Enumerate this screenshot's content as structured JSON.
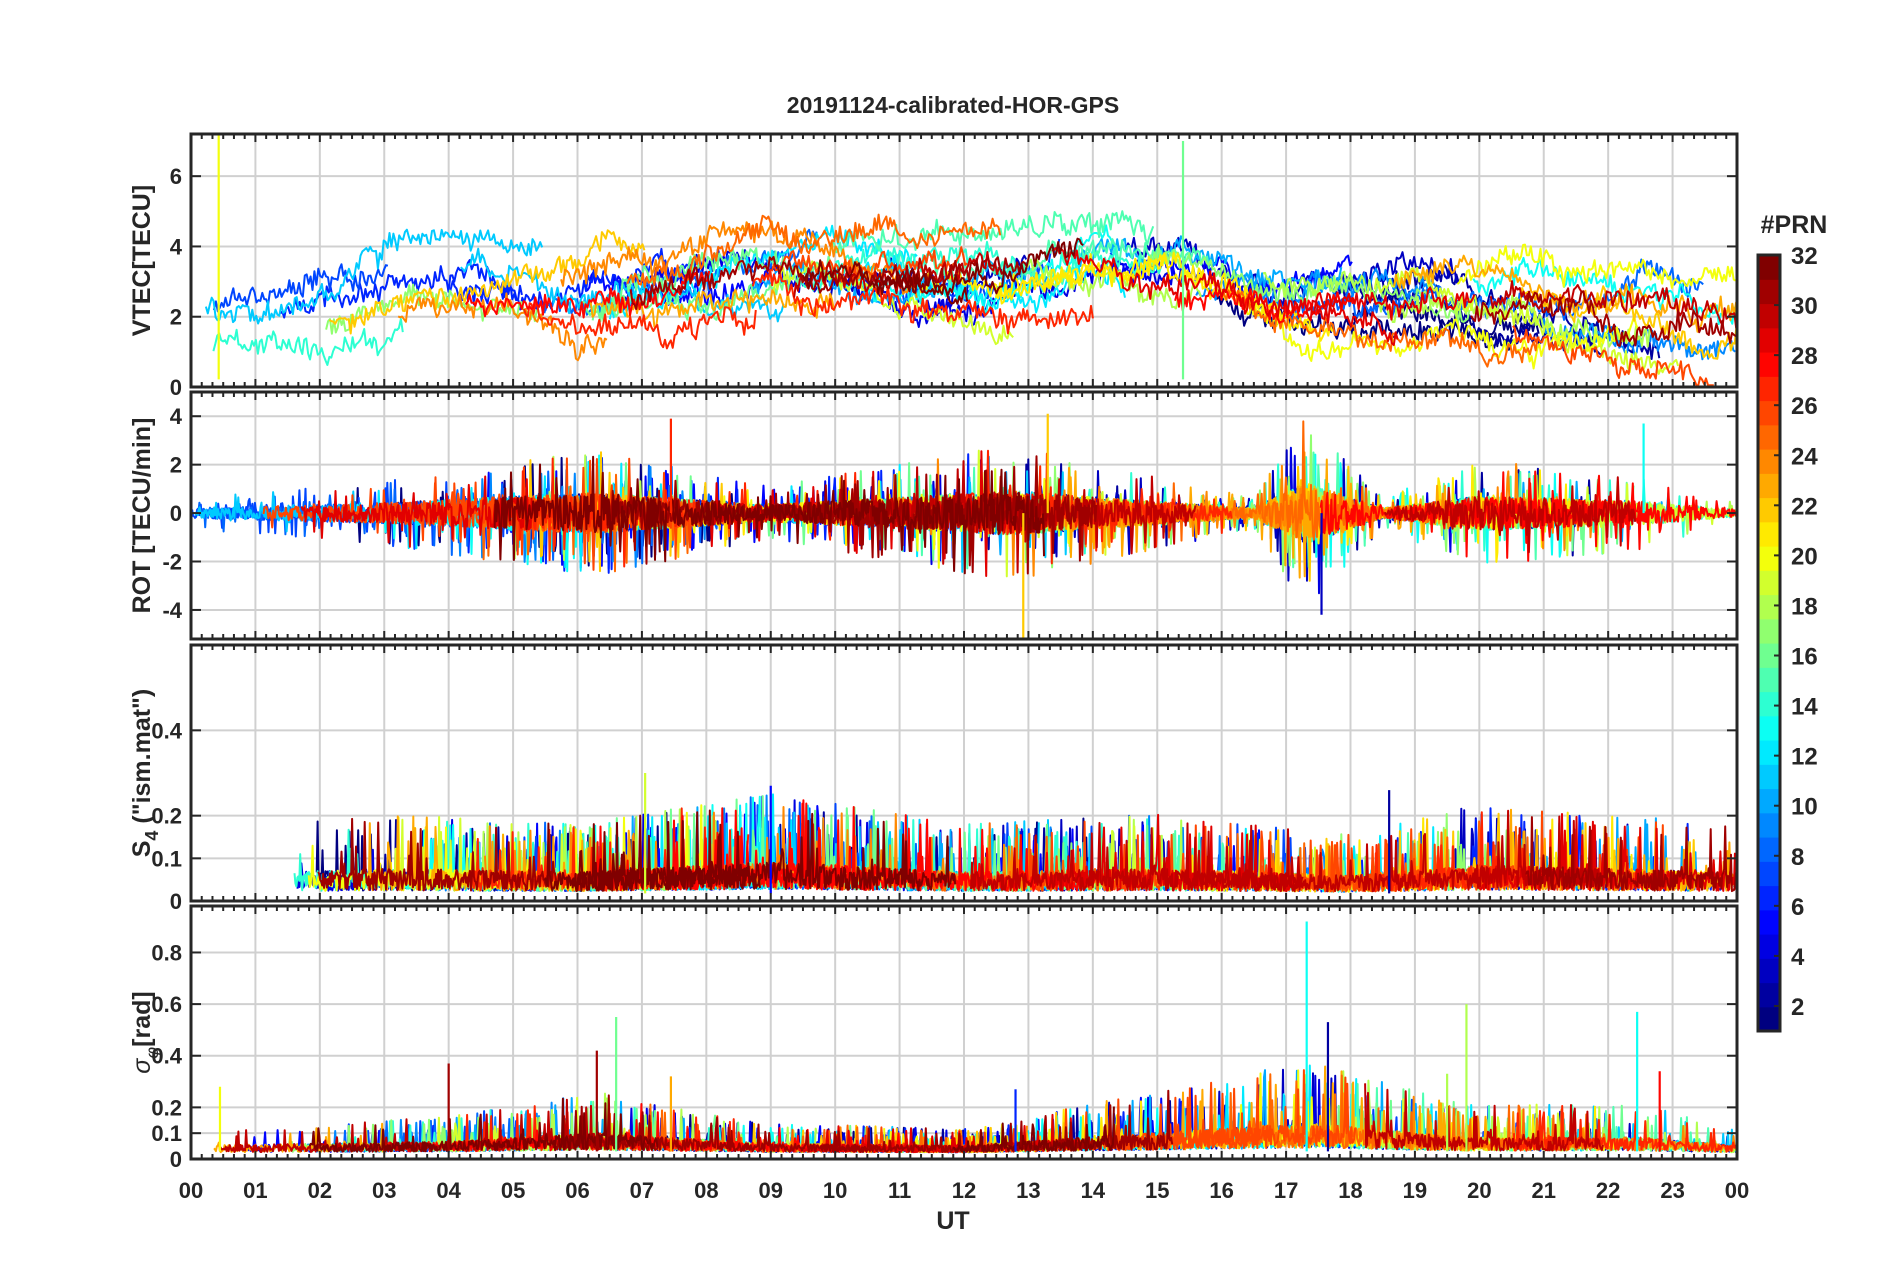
{
  "title": "20191124-calibrated-HOR-GPS",
  "chart_data": {
    "type": "line",
    "title": "20191124-calibrated-HOR-GPS",
    "xlabel": "UT",
    "x_ticks": [
      "00",
      "01",
      "02",
      "03",
      "04",
      "05",
      "06",
      "07",
      "08",
      "09",
      "10",
      "11",
      "12",
      "13",
      "14",
      "15",
      "16",
      "17",
      "18",
      "19",
      "20",
      "21",
      "22",
      "23",
      "00"
    ],
    "xlim": [
      0,
      24
    ],
    "grid": true,
    "panels": [
      {
        "id": "vtec",
        "ylabel": "VTEC[TECU]",
        "ylim": [
          0,
          7.2
        ],
        "yticks": [
          0,
          2,
          4,
          6
        ],
        "ytick_labels": [
          "0",
          "2",
          "4",
          "6"
        ],
        "kind": "level",
        "baseline": 2.0,
        "spread": 1.0,
        "activity": [
          {
            "t": 0.0,
            "level": 1.5
          },
          {
            "t": 2.0,
            "level": 2.0
          },
          {
            "t": 3.5,
            "level": 2.8
          },
          {
            "t": 6.0,
            "level": 2.6
          },
          {
            "t": 8.5,
            "level": 3.0
          },
          {
            "t": 10.0,
            "level": 3.2
          },
          {
            "t": 12.5,
            "level": 3.0
          },
          {
            "t": 14.0,
            "level": 3.6
          },
          {
            "t": 15.5,
            "level": 3.2
          },
          {
            "t": 17.0,
            "level": 2.4
          },
          {
            "t": 19.5,
            "level": 2.6
          },
          {
            "t": 21.5,
            "level": 2.0
          },
          {
            "t": 24.0,
            "level": 1.6
          }
        ]
      },
      {
        "id": "rot",
        "ylabel": "ROT [TECU/min]",
        "ylim": [
          -5.2,
          5.0
        ],
        "yticks": [
          -4,
          -2,
          0,
          2,
          4
        ],
        "ytick_labels": [
          "-4",
          "-2",
          "0",
          "2",
          "4"
        ],
        "kind": "symmetric",
        "activity": [
          {
            "t": 0.0,
            "level": 0.3
          },
          {
            "t": 3.0,
            "level": 0.6
          },
          {
            "t": 6.2,
            "level": 1.2
          },
          {
            "t": 9.0,
            "level": 0.5
          },
          {
            "t": 12.8,
            "level": 1.3
          },
          {
            "t": 14.5,
            "level": 0.8
          },
          {
            "t": 16.5,
            "level": 0.3
          },
          {
            "t": 17.3,
            "level": 1.8
          },
          {
            "t": 18.5,
            "level": 0.3
          },
          {
            "t": 20.0,
            "level": 1.0
          },
          {
            "t": 22.5,
            "level": 0.7
          },
          {
            "t": 24.0,
            "level": 0.2
          }
        ]
      },
      {
        "id": "s4",
        "ylabel": "S4 (\"ism.mat\")",
        "ylim": [
          0,
          0.6
        ],
        "yticks": [
          0,
          0.1,
          0.2,
          0.4
        ],
        "ytick_labels": [
          "0",
          "0.1",
          "0.2",
          "0.4"
        ],
        "kind": "positive",
        "activity": [
          {
            "t": 0.0,
            "level": 0.06
          },
          {
            "t": 3.0,
            "level": 0.08
          },
          {
            "t": 6.0,
            "level": 0.07
          },
          {
            "t": 9.0,
            "level": 0.1
          },
          {
            "t": 12.0,
            "level": 0.07
          },
          {
            "t": 15.0,
            "level": 0.08
          },
          {
            "t": 18.0,
            "level": 0.06
          },
          {
            "t": 20.0,
            "level": 0.09
          },
          {
            "t": 24.0,
            "level": 0.07
          }
        ]
      },
      {
        "id": "sigma",
        "ylabel": "σφ[rad]",
        "ylim": [
          0,
          0.98
        ],
        "yticks": [
          0,
          0.1,
          0.2,
          0.4,
          0.6,
          0.8
        ],
        "ytick_labels": [
          "0",
          "0.1",
          "0.2",
          "0.4",
          "0.6",
          "0.8"
        ],
        "kind": "positive",
        "activity": [
          {
            "t": 0.0,
            "level": 0.04
          },
          {
            "t": 4.0,
            "level": 0.06
          },
          {
            "t": 6.3,
            "level": 0.1
          },
          {
            "t": 9.0,
            "level": 0.05
          },
          {
            "t": 12.0,
            "level": 0.04
          },
          {
            "t": 17.3,
            "level": 0.15
          },
          {
            "t": 19.8,
            "level": 0.08
          },
          {
            "t": 22.5,
            "level": 0.08
          },
          {
            "t": 24.0,
            "level": 0.04
          }
        ]
      }
    ],
    "spikes": [
      {
        "panel": "rot",
        "t": 7.45,
        "v": 3.9,
        "prn": 27
      },
      {
        "panel": "rot",
        "t": 12.92,
        "v": -5.2,
        "prn": 22
      },
      {
        "panel": "rot",
        "t": 13.3,
        "v": 4.1,
        "prn": 22
      },
      {
        "panel": "rot",
        "t": 17.55,
        "v": -4.2,
        "prn": 3
      },
      {
        "panel": "rot",
        "t": 22.55,
        "v": 3.7,
        "prn": 13
      },
      {
        "panel": "sigma",
        "t": 0.45,
        "v": 0.28,
        "prn": 20
      },
      {
        "panel": "sigma",
        "t": 4.0,
        "v": 0.37,
        "prn": 31
      },
      {
        "panel": "sigma",
        "t": 6.3,
        "v": 0.42,
        "prn": 31
      },
      {
        "panel": "sigma",
        "t": 6.6,
        "v": 0.55,
        "prn": 16
      },
      {
        "panel": "sigma",
        "t": 7.45,
        "v": 0.32,
        "prn": 23
      },
      {
        "panel": "sigma",
        "t": 12.8,
        "v": 0.27,
        "prn": 6
      },
      {
        "panel": "sigma",
        "t": 17.32,
        "v": 0.92,
        "prn": 13
      },
      {
        "panel": "sigma",
        "t": 17.65,
        "v": 0.53,
        "prn": 2
      },
      {
        "panel": "sigma",
        "t": 19.5,
        "v": 0.33,
        "prn": 18
      },
      {
        "panel": "sigma",
        "t": 19.8,
        "v": 0.6,
        "prn": 18
      },
      {
        "panel": "sigma",
        "t": 22.45,
        "v": 0.57,
        "prn": 13
      },
      {
        "panel": "sigma",
        "t": 22.8,
        "v": 0.34,
        "prn": 28
      },
      {
        "panel": "s4",
        "t": 7.05,
        "v": 0.3,
        "prn": 19
      },
      {
        "panel": "s4",
        "t": 9.0,
        "v": 0.27,
        "prn": 5
      },
      {
        "panel": "s4",
        "t": 18.6,
        "v": 0.26,
        "prn": 2
      },
      {
        "panel": "vtec",
        "t": 0.43,
        "v": 7.2,
        "prn": 20
      },
      {
        "panel": "vtec",
        "t": 15.4,
        "v": 7.0,
        "prn": 16
      }
    ],
    "series_count": 32,
    "colorbar": {
      "label": "#PRN",
      "range": [
        1,
        32
      ],
      "ticks": [
        2,
        4,
        6,
        8,
        10,
        12,
        14,
        16,
        18,
        20,
        22,
        24,
        26,
        28,
        30,
        32
      ],
      "tick_labels": [
        "2",
        "4",
        "6",
        "8",
        "10",
        "12",
        "14",
        "16",
        "18",
        "20",
        "22",
        "24",
        "26",
        "28",
        "30",
        "32"
      ],
      "colormap": "jet"
    }
  }
}
